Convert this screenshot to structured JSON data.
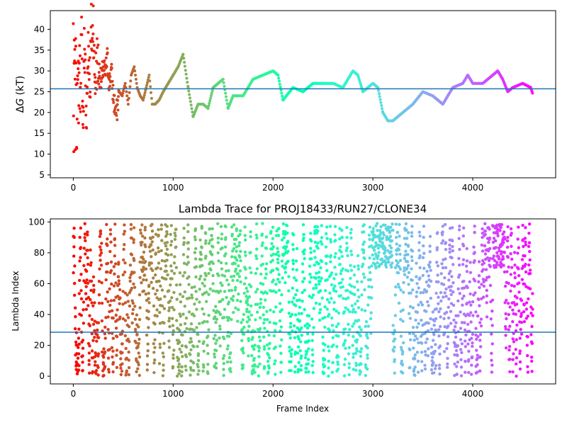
{
  "chart_data": [
    {
      "type": "scatter",
      "title": "",
      "xlabel": "",
      "ylabel": "ΔG (kT)",
      "ylabel_delta": "Δ",
      "ylabel_G": "G",
      "ylabel_unit": " (kT)",
      "xlim": [
        -230,
        4830
      ],
      "ylim": [
        4.3,
        44.5
      ],
      "xticks": [
        0,
        1000,
        2000,
        3000,
        4000
      ],
      "xtick_labels": [
        "0",
        "1000",
        "2000",
        "3000",
        "4000"
      ],
      "yticks": [
        5,
        10,
        15,
        20,
        25,
        30,
        35,
        40
      ],
      "ytick_labels": [
        "5",
        "10",
        "15",
        "20",
        "25",
        "30",
        "35",
        "40"
      ],
      "hline": 25.7,
      "hline_color": "#1f77b4",
      "colormap": "rainbow (red at frame 0 → violet at last frame)",
      "series": [
        {
          "x": [
            0,
            5,
            10,
            15,
            20,
            25,
            30,
            35,
            40,
            45,
            50,
            55,
            60,
            65,
            70,
            75,
            80,
            90,
            100,
            110,
            120,
            130,
            140,
            150,
            160,
            170,
            180,
            190,
            200,
            210,
            220,
            240,
            260,
            280,
            300,
            320,
            340,
            360,
            380,
            400,
            430,
            460,
            490,
            520,
            550,
            580,
            610,
            640,
            670,
            700,
            730,
            760,
            790,
            820,
            860,
            900,
            950,
            1000,
            1050,
            1100,
            1150,
            1200,
            1250,
            1300,
            1350,
            1400,
            1450,
            1500,
            1550,
            1600,
            1700,
            1800,
            1900,
            2000,
            2050,
            2100,
            2200,
            2300,
            2400,
            2500,
            2600,
            2700,
            2800,
            2850,
            2900,
            3000,
            3050,
            3100,
            3150,
            3200,
            3300,
            3400,
            3500,
            3600,
            3700,
            3800,
            3900,
            3950,
            4000,
            4100,
            4200,
            4250,
            4300,
            4350,
            4400,
            4500,
            4580,
            4600
          ],
          "y": [
            40,
            10,
            35,
            30,
            17,
            40,
            25,
            13,
            33,
            22,
            29,
            20,
            36,
            27,
            31,
            24,
            43,
            28,
            18,
            35,
            33,
            15,
            26,
            38,
            30,
            29,
            40,
            36,
            44,
            31,
            28,
            33,
            30,
            27,
            31,
            29,
            33,
            27,
            30,
            24,
            19,
            25,
            24,
            27,
            22,
            29,
            31,
            26,
            24,
            23,
            26,
            29,
            22,
            22,
            23,
            25,
            27,
            29,
            31,
            34,
            26,
            19,
            22,
            22,
            21,
            26,
            27,
            28,
            21,
            24,
            24,
            28,
            29,
            30,
            29,
            23,
            26,
            25,
            27,
            27,
            27,
            26,
            30,
            29,
            25,
            27,
            26,
            20,
            18,
            18,
            20,
            22,
            25,
            24,
            22,
            26,
            27,
            29,
            27,
            27,
            29,
            30,
            28,
            25,
            26,
            27,
            26,
            24.5
          ]
        }
      ]
    },
    {
      "type": "scatter",
      "title": "Lambda Trace for PROJ18433/RUN27/CLONE34",
      "xlabel": "Frame Index",
      "ylabel": "Lambda Index",
      "xlim": [
        -230,
        4830
      ],
      "ylim": [
        -5,
        102
      ],
      "xticks": [
        0,
        1000,
        2000,
        3000,
        4000
      ],
      "xtick_labels": [
        "0",
        "1000",
        "2000",
        "3000",
        "4000"
      ],
      "yticks": [
        0,
        20,
        40,
        60,
        80,
        100
      ],
      "ytick_labels": [
        "0",
        "20",
        "40",
        "60",
        "80",
        "100"
      ],
      "hline": 28.5,
      "hline_color": "#1f77b4",
      "colormap": "rainbow (red at frame 0 → violet at last frame)",
      "point_count": 2500,
      "x_range": [
        0,
        4600
      ],
      "y_range": [
        0,
        99
      ],
      "note": "Frame-by-frame lambda index trace; points fill the 0–99 range in vertical sweeps, with a dense cluster near 80–99 around frames 3000–3200 and 4200–4300."
    }
  ]
}
